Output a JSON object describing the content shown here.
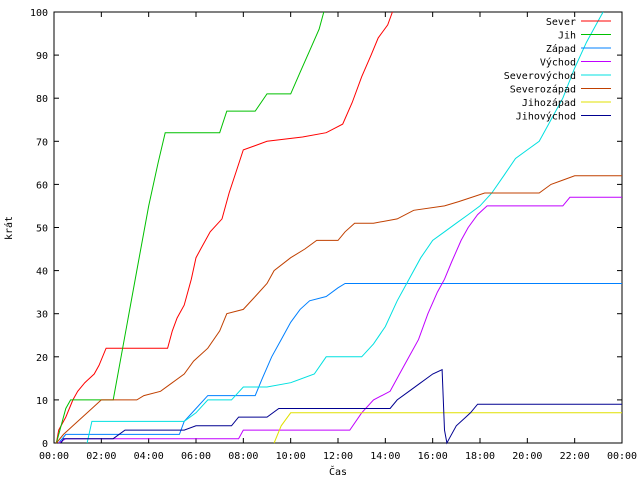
{
  "chart_data": {
    "type": "line",
    "title": "",
    "xlabel": "Čas",
    "ylabel": "krát",
    "xlim": [
      0,
      24
    ],
    "ylim": [
      0,
      100
    ],
    "x_ticks": [
      {
        "value": 0,
        "label": "00:00"
      },
      {
        "value": 2,
        "label": "02:00"
      },
      {
        "value": 4,
        "label": "04:00"
      },
      {
        "value": 6,
        "label": "06:00"
      },
      {
        "value": 8,
        "label": "08:00"
      },
      {
        "value": 10,
        "label": "10:00"
      },
      {
        "value": 12,
        "label": "12:00"
      },
      {
        "value": 14,
        "label": "14:00"
      },
      {
        "value": 16,
        "label": "16:00"
      },
      {
        "value": 18,
        "label": "18:00"
      },
      {
        "value": 20,
        "label": "20:00"
      },
      {
        "value": 22,
        "label": "22:00"
      },
      {
        "value": 24,
        "label": "00:00"
      }
    ],
    "y_ticks": [
      {
        "value": 0,
        "label": "0"
      },
      {
        "value": 10,
        "label": "10"
      },
      {
        "value": 20,
        "label": "20"
      },
      {
        "value": 30,
        "label": "30"
      },
      {
        "value": 40,
        "label": "40"
      },
      {
        "value": 50,
        "label": "50"
      },
      {
        "value": 60,
        "label": "60"
      },
      {
        "value": 70,
        "label": "70"
      },
      {
        "value": 80,
        "label": "80"
      },
      {
        "value": 90,
        "label": "90"
      },
      {
        "value": 100,
        "label": "100"
      }
    ],
    "grid": false,
    "legend_position": "top-right",
    "series": [
      {
        "name": "Sever",
        "color": "#ff0000",
        "points": [
          [
            0.1,
            0
          ],
          [
            0.2,
            3
          ],
          [
            0.5,
            6
          ],
          [
            0.8,
            10
          ],
          [
            1.0,
            12
          ],
          [
            1.3,
            14
          ],
          [
            1.7,
            16
          ],
          [
            1.9,
            18
          ],
          [
            2.2,
            22
          ],
          [
            4.8,
            22
          ],
          [
            5.0,
            26
          ],
          [
            5.2,
            29
          ],
          [
            5.5,
            32
          ],
          [
            5.8,
            38
          ],
          [
            6.0,
            43
          ],
          [
            6.2,
            45
          ],
          [
            6.6,
            49
          ],
          [
            7.1,
            52
          ],
          [
            7.4,
            58
          ],
          [
            7.7,
            63
          ],
          [
            8.0,
            68
          ],
          [
            8.5,
            69
          ],
          [
            9.0,
            70
          ],
          [
            10.5,
            71
          ],
          [
            11.5,
            72
          ],
          [
            12.2,
            74
          ],
          [
            12.6,
            79
          ],
          [
            13.0,
            85
          ],
          [
            13.4,
            90
          ],
          [
            13.7,
            94
          ],
          [
            14.1,
            97
          ],
          [
            14.3,
            100
          ]
        ]
      },
      {
        "name": "Jih",
        "color": "#00c000",
        "points": [
          [
            0.1,
            0
          ],
          [
            0.3,
            4
          ],
          [
            0.5,
            8
          ],
          [
            0.7,
            10
          ],
          [
            2.5,
            10
          ],
          [
            3.0,
            25
          ],
          [
            3.5,
            40
          ],
          [
            4.0,
            55
          ],
          [
            4.4,
            65
          ],
          [
            4.7,
            72
          ],
          [
            7.0,
            72
          ],
          [
            7.3,
            77
          ],
          [
            8.5,
            77
          ],
          [
            9.0,
            81
          ],
          [
            10.0,
            81
          ],
          [
            10.4,
            86
          ],
          [
            10.8,
            91
          ],
          [
            11.2,
            96
          ],
          [
            11.4,
            100
          ]
        ]
      },
      {
        "name": "Západ",
        "color": "#0080ff",
        "points": [
          [
            0.2,
            0
          ],
          [
            0.5,
            2
          ],
          [
            5.3,
            2
          ],
          [
            5.5,
            5
          ],
          [
            6.0,
            8
          ],
          [
            6.5,
            11
          ],
          [
            8.5,
            11
          ],
          [
            8.8,
            15
          ],
          [
            9.2,
            20
          ],
          [
            9.6,
            24
          ],
          [
            10.0,
            28
          ],
          [
            10.4,
            31
          ],
          [
            10.8,
            33
          ],
          [
            11.5,
            34
          ],
          [
            12.0,
            36
          ],
          [
            12.3,
            37
          ],
          [
            24.0,
            37
          ]
        ]
      },
      {
        "name": "Východ",
        "color": "#c000ff",
        "points": [
          [
            0.2,
            0
          ],
          [
            0.5,
            1
          ],
          [
            7.8,
            1
          ],
          [
            8.0,
            3
          ],
          [
            12.5,
            3
          ],
          [
            13.0,
            7
          ],
          [
            13.5,
            10
          ],
          [
            14.2,
            12
          ],
          [
            14.6,
            16
          ],
          [
            15.0,
            20
          ],
          [
            15.4,
            24
          ],
          [
            15.8,
            30
          ],
          [
            16.2,
            35
          ],
          [
            16.5,
            38
          ],
          [
            16.8,
            42
          ],
          [
            17.2,
            47
          ],
          [
            17.5,
            50
          ],
          [
            17.9,
            53
          ],
          [
            18.3,
            55
          ],
          [
            21.5,
            55
          ],
          [
            21.8,
            57
          ],
          [
            24.0,
            57
          ]
        ]
      },
      {
        "name": "Severovýchod",
        "color": "#00e0e0",
        "points": [
          [
            1.4,
            0
          ],
          [
            1.6,
            5
          ],
          [
            5.5,
            5
          ],
          [
            6.0,
            7
          ],
          [
            6.5,
            10
          ],
          [
            7.5,
            10
          ],
          [
            8.0,
            13
          ],
          [
            9.0,
            13
          ],
          [
            10.0,
            14
          ],
          [
            11.0,
            16
          ],
          [
            11.5,
            20
          ],
          [
            13.0,
            20
          ],
          [
            13.5,
            23
          ],
          [
            14.0,
            27
          ],
          [
            14.5,
            33
          ],
          [
            15.0,
            38
          ],
          [
            15.5,
            43
          ],
          [
            16.0,
            47
          ],
          [
            16.5,
            49
          ],
          [
            17.0,
            51
          ],
          [
            17.5,
            53
          ],
          [
            18.0,
            55
          ],
          [
            18.5,
            58
          ],
          [
            19.0,
            62
          ],
          [
            19.5,
            66
          ],
          [
            20.0,
            68
          ],
          [
            20.5,
            70
          ],
          [
            21.0,
            75
          ],
          [
            21.5,
            80
          ],
          [
            22.0,
            87
          ],
          [
            22.5,
            93
          ],
          [
            23.0,
            98
          ],
          [
            23.2,
            100
          ]
        ]
      },
      {
        "name": "Severozápad",
        "color": "#c04000",
        "points": [
          [
            0.1,
            0
          ],
          [
            0.4,
            2
          ],
          [
            0.8,
            4
          ],
          [
            1.2,
            6
          ],
          [
            1.6,
            8
          ],
          [
            2.0,
            10
          ],
          [
            3.5,
            10
          ],
          [
            3.8,
            11
          ],
          [
            4.5,
            12
          ],
          [
            5.0,
            14
          ],
          [
            5.5,
            16
          ],
          [
            5.9,
            19
          ],
          [
            6.5,
            22
          ],
          [
            7.0,
            26
          ],
          [
            7.3,
            30
          ],
          [
            8.0,
            31
          ],
          [
            8.5,
            34
          ],
          [
            9.0,
            37
          ],
          [
            9.3,
            40
          ],
          [
            10.0,
            43
          ],
          [
            10.6,
            45
          ],
          [
            11.1,
            47
          ],
          [
            12.0,
            47
          ],
          [
            12.3,
            49
          ],
          [
            12.7,
            51
          ],
          [
            13.5,
            51
          ],
          [
            14.5,
            52
          ],
          [
            15.2,
            54
          ],
          [
            16.5,
            55
          ],
          [
            17.1,
            56
          ],
          [
            18.2,
            58
          ],
          [
            20.5,
            58
          ],
          [
            21.0,
            60
          ],
          [
            21.5,
            61
          ],
          [
            22.0,
            62
          ],
          [
            24.0,
            62
          ]
        ]
      },
      {
        "name": "Jihozápad",
        "color": "#e0e000",
        "points": [
          [
            9.3,
            0
          ],
          [
            9.6,
            4
          ],
          [
            10.0,
            7
          ],
          [
            24.0,
            7
          ]
        ]
      },
      {
        "name": "Jihovýchod",
        "color": "#000090",
        "points": [
          [
            0.3,
            0
          ],
          [
            0.4,
            1
          ],
          [
            2.5,
            1
          ],
          [
            3.0,
            3
          ],
          [
            5.5,
            3
          ],
          [
            6.0,
            4
          ],
          [
            7.5,
            4
          ],
          [
            7.8,
            6
          ],
          [
            9.0,
            6
          ],
          [
            9.5,
            8
          ],
          [
            14.2,
            8
          ],
          [
            14.5,
            10
          ],
          [
            15.0,
            12
          ],
          [
            15.5,
            14
          ],
          [
            16.0,
            16
          ],
          [
            16.4,
            17
          ],
          [
            16.5,
            3
          ],
          [
            16.6,
            0
          ],
          [
            16.7,
            1
          ],
          [
            17.0,
            4
          ],
          [
            17.4,
            6
          ],
          [
            17.6,
            7
          ],
          [
            17.9,
            9
          ],
          [
            24.0,
            9
          ]
        ]
      }
    ]
  }
}
